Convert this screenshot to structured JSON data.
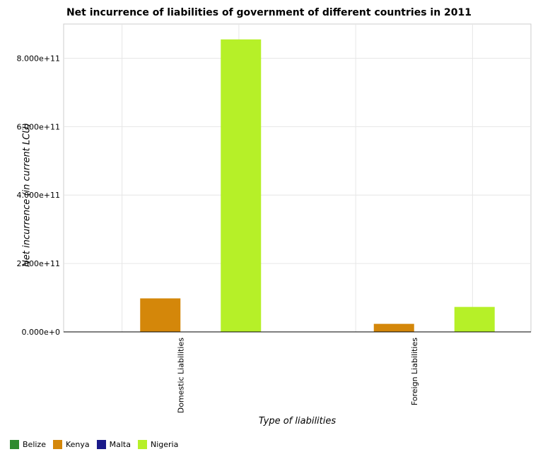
{
  "chart_data": {
    "type": "bar",
    "title": "Net incurrence of liabilities of government of different countries in 2011",
    "xlabel": "Type of liabilities",
    "ylabel": "Net incurrence (in current LCU)",
    "categories": [
      "Domestic Liabilities",
      "Foreign Liabilities"
    ],
    "series": [
      {
        "name": "Belize",
        "color": "#2e8b2e",
        "values": [
          0,
          0
        ]
      },
      {
        "name": "Kenya",
        "color": "#d4870a",
        "values": [
          98000000000,
          23500000000
        ]
      },
      {
        "name": "Malta",
        "color": "#1a1a8a",
        "values": [
          0,
          0
        ]
      },
      {
        "name": "Nigeria",
        "color": "#b6f028",
        "values": [
          855000000000,
          73000000000
        ]
      }
    ],
    "yticks": [
      "0.000e+0",
      "2.000e+11",
      "4.000e+11",
      "6.000e+11",
      "8.000e+11"
    ],
    "ytick_values": [
      0,
      200000000000,
      400000000000,
      600000000000,
      800000000000
    ],
    "ylim": [
      0,
      900000000000
    ],
    "grid": true,
    "legend_position": "bottom-left"
  }
}
